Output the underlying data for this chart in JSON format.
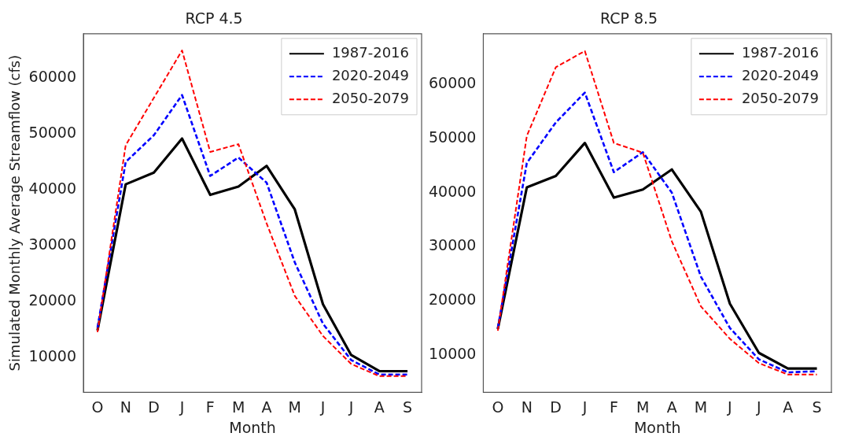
{
  "chart_data": [
    {
      "type": "line",
      "title": "RCP 4.5",
      "xlabel": "Month",
      "ylabel": "Simulated Monthly Average Streamflow (cfs)",
      "categories": [
        "O",
        "N",
        "D",
        "J",
        "F",
        "M",
        "A",
        "M",
        "J",
        "J",
        "A",
        "S"
      ],
      "ylim": [
        3700,
        68000
      ],
      "yticks": [
        10000,
        20000,
        30000,
        40000,
        50000,
        60000
      ],
      "grid": false,
      "legend": "top right",
      "marker": "none",
      "series": [
        {
          "name": "1987-2016",
          "color": "#000000",
          "line_style": "solid",
          "values": [
            14800,
            41000,
            43100,
            49200,
            39100,
            40600,
            44300,
            36500,
            19500,
            10400,
            7500,
            7500
          ]
        },
        {
          "name": "2020-2049",
          "color": "#0000ff",
          "line_style": "dashed",
          "values": [
            15300,
            45000,
            49800,
            57000,
            42500,
            45800,
            41300,
            27000,
            16000,
            9500,
            6900,
            6900
          ]
        },
        {
          "name": "2050-2079",
          "color": "#ff0000",
          "line_style": "dashed",
          "values": [
            14500,
            48000,
            56500,
            65000,
            46800,
            48200,
            34000,
            21000,
            13800,
            8800,
            6600,
            6600
          ]
        }
      ]
    },
    {
      "type": "line",
      "title": "RCP 8.5",
      "xlabel": "Month",
      "categories": [
        "O",
        "N",
        "D",
        "J",
        "F",
        "M",
        "A",
        "M",
        "J",
        "J",
        "A",
        "S"
      ],
      "ylim": [
        3100,
        69400
      ],
      "yticks": [
        10000,
        20000,
        30000,
        40000,
        50000,
        60000
      ],
      "grid": false,
      "legend": "top right",
      "marker": "none",
      "series": [
        {
          "name": "1987-2016",
          "color": "#000000",
          "line_style": "solid",
          "values": [
            14800,
            41000,
            43100,
            49200,
            39100,
            40600,
            44300,
            36500,
            19500,
            10400,
            7500,
            7500
          ]
        },
        {
          "name": "2020-2049",
          "color": "#0000ff",
          "line_style": "dashed",
          "values": [
            15000,
            45500,
            53000,
            58500,
            43800,
            47500,
            40000,
            24500,
            15000,
            9200,
            6800,
            7000
          ]
        },
        {
          "name": "2050-2079",
          "color": "#ff0000",
          "line_style": "dashed",
          "values": [
            14500,
            50500,
            63200,
            66200,
            49200,
            47400,
            31000,
            19000,
            13000,
            8500,
            6400,
            6400
          ]
        }
      ]
    }
  ]
}
